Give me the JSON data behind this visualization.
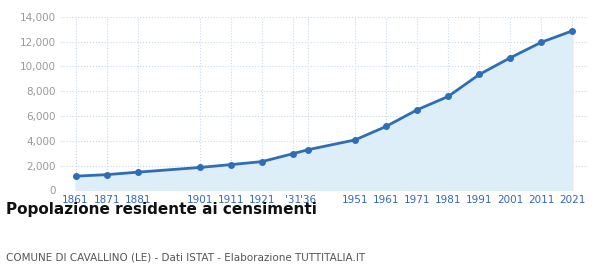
{
  "years": [
    1861,
    1871,
    1881,
    1901,
    1911,
    1921,
    1931,
    1936,
    1951,
    1961,
    1971,
    1981,
    1991,
    2001,
    2011,
    2021
  ],
  "population": [
    1150,
    1270,
    1470,
    1850,
    2080,
    2320,
    2960,
    3290,
    4070,
    5160,
    6500,
    7580,
    9350,
    10700,
    11950,
    12870
  ],
  "line_color": "#2f6eb5",
  "fill_color": "#ddeef8",
  "marker_color": "#2f6eb5",
  "grid_color": "#c8d8e8",
  "bg_color": "#ffffff",
  "plot_bg_color": "#ffffff",
  "title": "Popolazione residente ai censimenti",
  "subtitle": "COMUNE DI CAVALLINO (LE) - Dati ISTAT - Elaborazione TUTTITALIA.IT",
  "ylim": [
    0,
    14000
  ],
  "yticks": [
    0,
    2000,
    4000,
    6000,
    8000,
    10000,
    12000,
    14000
  ],
  "xlim_left": 1856,
  "xlim_right": 2026,
  "title_fontsize": 11,
  "subtitle_fontsize": 7.5,
  "tick_color": "#3366bb",
  "ytick_color": "#999999",
  "ytick_fontsize": 7.5,
  "xtick_fontsize": 7.5
}
